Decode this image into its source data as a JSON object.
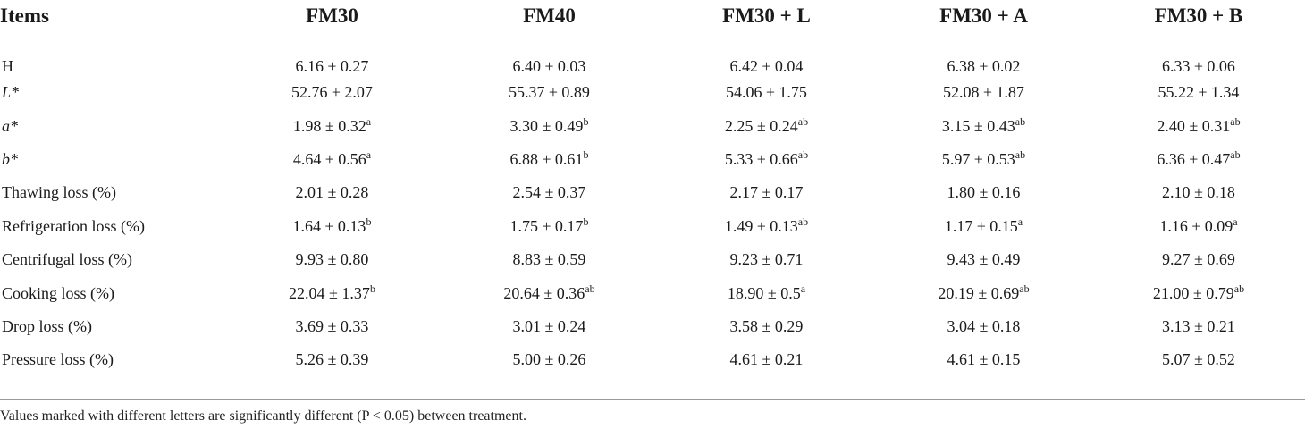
{
  "table": {
    "columns": [
      "Items",
      "FM30",
      "FM40",
      "FM30 + L",
      "FM30 + A",
      "FM30 + B"
    ],
    "rows": [
      {
        "label": "H",
        "label_italic": false,
        "cells": [
          {
            "v": "6.16 ± 0.27",
            "sup": ""
          },
          {
            "v": "6.40 ± 0.03",
            "sup": ""
          },
          {
            "v": "6.42 ± 0.04",
            "sup": ""
          },
          {
            "v": "6.38 ± 0.02",
            "sup": ""
          },
          {
            "v": "6.33 ± 0.06",
            "sup": ""
          }
        ]
      },
      {
        "label": "L*",
        "label_italic": true,
        "cells": [
          {
            "v": "52.76 ± 2.07",
            "sup": ""
          },
          {
            "v": "55.37 ± 0.89",
            "sup": ""
          },
          {
            "v": "54.06 ± 1.75",
            "sup": ""
          },
          {
            "v": "52.08 ± 1.87",
            "sup": ""
          },
          {
            "v": "55.22 ± 1.34",
            "sup": ""
          }
        ]
      },
      {
        "label": "a*",
        "label_italic": true,
        "cells": [
          {
            "v": "1.98 ± 0.32",
            "sup": "a"
          },
          {
            "v": "3.30 ± 0.49",
            "sup": "b"
          },
          {
            "v": "2.25 ± 0.24",
            "sup": "ab"
          },
          {
            "v": "3.15 ± 0.43",
            "sup": "ab"
          },
          {
            "v": "2.40 ± 0.31",
            "sup": "ab"
          }
        ]
      },
      {
        "label": "b*",
        "label_italic": true,
        "cells": [
          {
            "v": "4.64 ± 0.56",
            "sup": "a"
          },
          {
            "v": "6.88 ± 0.61",
            "sup": "b"
          },
          {
            "v": "5.33 ± 0.66",
            "sup": "ab"
          },
          {
            "v": "5.97 ± 0.53",
            "sup": "ab"
          },
          {
            "v": "6.36 ± 0.47",
            "sup": "ab"
          }
        ]
      },
      {
        "label": "Thawing loss (%)",
        "label_italic": false,
        "cells": [
          {
            "v": "2.01 ± 0.28",
            "sup": ""
          },
          {
            "v": "2.54 ± 0.37",
            "sup": ""
          },
          {
            "v": "2.17 ± 0.17",
            "sup": ""
          },
          {
            "v": "1.80 ± 0.16",
            "sup": ""
          },
          {
            "v": "2.10 ± 0.18",
            "sup": ""
          }
        ]
      },
      {
        "label": "Refrigeration loss (%)",
        "label_italic": false,
        "cells": [
          {
            "v": "1.64 ± 0.13",
            "sup": "b"
          },
          {
            "v": "1.75 ± 0.17",
            "sup": "b"
          },
          {
            "v": "1.49 ± 0.13",
            "sup": "ab"
          },
          {
            "v": "1.17 ± 0.15",
            "sup": "a"
          },
          {
            "v": "1.16 ± 0.09",
            "sup": "a"
          }
        ]
      },
      {
        "label": "Centrifugal loss (%)",
        "label_italic": false,
        "cells": [
          {
            "v": "9.93 ± 0.80",
            "sup": ""
          },
          {
            "v": "8.83 ± 0.59",
            "sup": ""
          },
          {
            "v": "9.23 ± 0.71",
            "sup": ""
          },
          {
            "v": "9.43 ± 0.49",
            "sup": ""
          },
          {
            "v": "9.27 ± 0.69",
            "sup": ""
          }
        ]
      },
      {
        "label": "Cooking loss (%)",
        "label_italic": false,
        "cells": [
          {
            "v": "22.04 ± 1.37",
            "sup": "b"
          },
          {
            "v": "20.64 ± 0.36",
            "sup": "ab"
          },
          {
            "v": "18.90 ± 0.5",
            "sup": "a"
          },
          {
            "v": "20.19 ± 0.69",
            "sup": "ab"
          },
          {
            "v": "21.00 ± 0.79",
            "sup": "ab"
          }
        ]
      },
      {
        "label": "Drop loss (%)",
        "label_italic": false,
        "cells": [
          {
            "v": "3.69 ± 0.33",
            "sup": ""
          },
          {
            "v": "3.01 ± 0.24",
            "sup": ""
          },
          {
            "v": "3.58 ± 0.29",
            "sup": ""
          },
          {
            "v": "3.04 ± 0.18",
            "sup": ""
          },
          {
            "v": "3.13 ± 0.21",
            "sup": ""
          }
        ]
      },
      {
        "label": "Pressure loss (%)",
        "label_italic": false,
        "cells": [
          {
            "v": "5.26 ± 0.39",
            "sup": ""
          },
          {
            "v": "5.00 ± 0.26",
            "sup": ""
          },
          {
            "v": "4.61 ± 0.21",
            "sup": ""
          },
          {
            "v": "4.61 ± 0.15",
            "sup": ""
          },
          {
            "v": "5.07 ± 0.52",
            "sup": ""
          }
        ]
      }
    ]
  },
  "footnote": "Values marked with different letters are significantly different (P < 0.05) between treatment."
}
